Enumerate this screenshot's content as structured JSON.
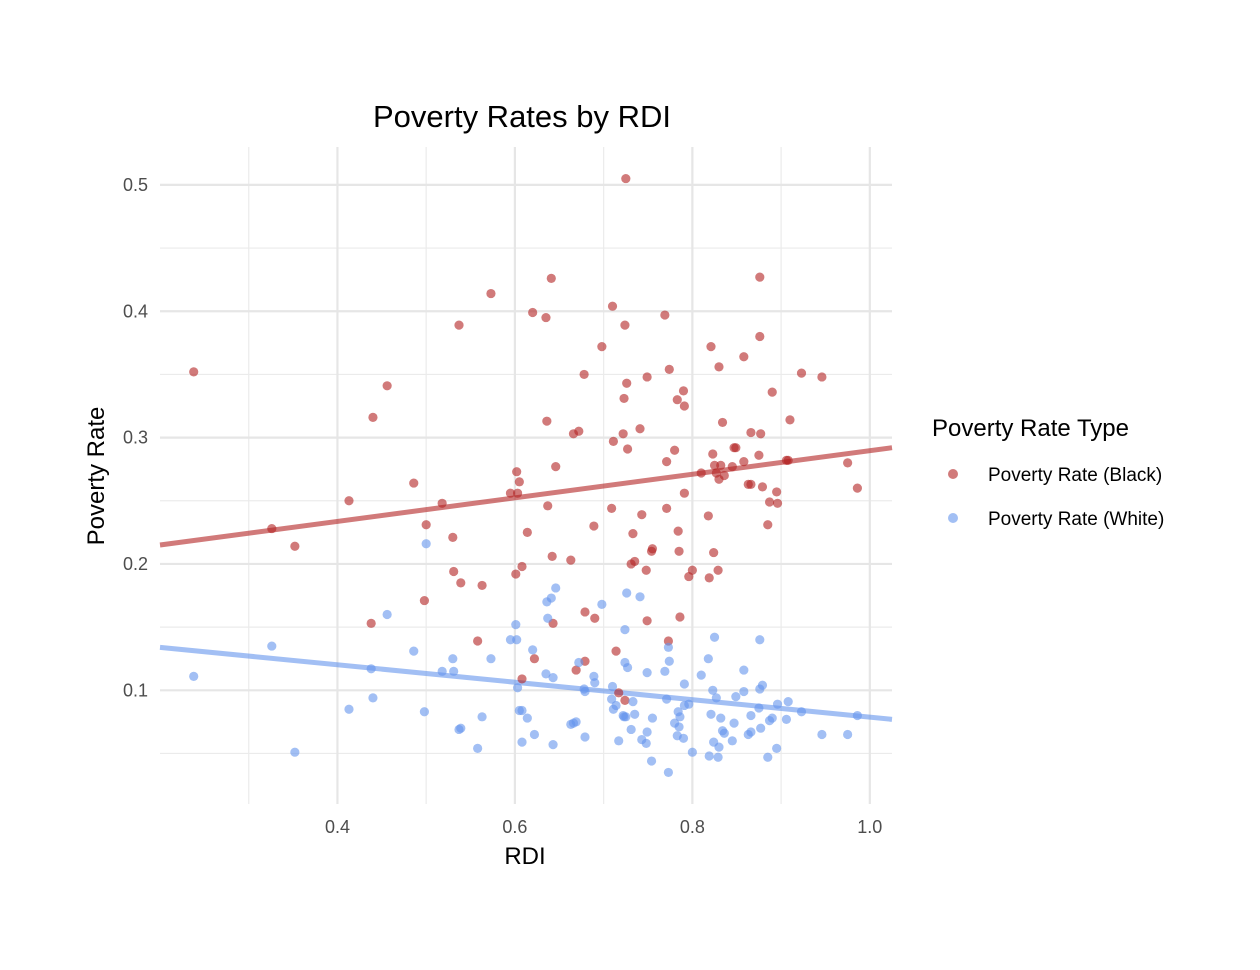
{
  "chart_data": {
    "type": "scatter",
    "title": "Poverty Rates by RDI",
    "xlabel": "RDI",
    "ylabel": "Poverty Rate",
    "xlim": [
      0.2,
      1.025
    ],
    "ylim": [
      0.01,
      0.53
    ],
    "x_ticks": [
      0.4,
      0.6,
      0.8,
      1.0
    ],
    "x_tick_labels": [
      "0.4",
      "0.6",
      "0.8",
      "1.0"
    ],
    "y_ticks": [
      0.1,
      0.2,
      0.3,
      0.4,
      0.5
    ],
    "y_tick_labels": [
      "0.1",
      "0.2",
      "0.3",
      "0.4",
      "0.5"
    ],
    "grid": true,
    "legend": {
      "title": "Poverty Rate Type",
      "position": "right"
    },
    "series": [
      {
        "name": "Poverty Rate (Black)",
        "color": "#b22222",
        "trend": {
          "x": [
            0.2,
            1.025
          ],
          "y": [
            0.215,
            0.292
          ]
        },
        "points": [
          [
            0.238,
            0.352
          ],
          [
            0.326,
            0.228
          ],
          [
            0.352,
            0.214
          ],
          [
            0.413,
            0.25
          ],
          [
            0.438,
            0.153
          ],
          [
            0.44,
            0.316
          ],
          [
            0.456,
            0.341
          ],
          [
            0.486,
            0.264
          ],
          [
            0.498,
            0.171
          ],
          [
            0.5,
            0.231
          ],
          [
            0.518,
            0.248
          ],
          [
            0.53,
            0.221
          ],
          [
            0.531,
            0.194
          ],
          [
            0.537,
            0.389
          ],
          [
            0.539,
            0.185
          ],
          [
            0.563,
            0.183
          ],
          [
            0.558,
            0.139
          ],
          [
            0.573,
            0.414
          ],
          [
            0.595,
            0.256
          ],
          [
            0.601,
            0.192
          ],
          [
            0.602,
            0.273
          ],
          [
            0.603,
            0.256
          ],
          [
            0.605,
            0.265
          ],
          [
            0.608,
            0.198
          ],
          [
            0.608,
            0.109
          ],
          [
            0.614,
            0.225
          ],
          [
            0.62,
            0.399
          ],
          [
            0.622,
            0.125
          ],
          [
            0.635,
            0.395
          ],
          [
            0.636,
            0.313
          ],
          [
            0.637,
            0.246
          ],
          [
            0.641,
            0.426
          ],
          [
            0.642,
            0.206
          ],
          [
            0.643,
            0.153
          ],
          [
            0.646,
            0.277
          ],
          [
            0.663,
            0.203
          ],
          [
            0.666,
            0.303
          ],
          [
            0.669,
            0.116
          ],
          [
            0.672,
            0.305
          ],
          [
            0.678,
            0.35
          ],
          [
            0.679,
            0.123
          ],
          [
            0.679,
            0.162
          ],
          [
            0.689,
            0.23
          ],
          [
            0.69,
            0.157
          ],
          [
            0.698,
            0.372
          ],
          [
            0.709,
            0.244
          ],
          [
            0.71,
            0.404
          ],
          [
            0.711,
            0.297
          ],
          [
            0.714,
            0.131
          ],
          [
            0.717,
            0.098
          ],
          [
            0.722,
            0.303
          ],
          [
            0.723,
            0.331
          ],
          [
            0.724,
            0.389
          ],
          [
            0.724,
            0.092
          ],
          [
            0.725,
            0.505
          ],
          [
            0.726,
            0.343
          ],
          [
            0.727,
            0.291
          ],
          [
            0.731,
            0.2
          ],
          [
            0.733,
            0.224
          ],
          [
            0.735,
            0.202
          ],
          [
            0.741,
            0.307
          ],
          [
            0.743,
            0.239
          ],
          [
            0.748,
            0.195
          ],
          [
            0.749,
            0.155
          ],
          [
            0.749,
            0.348
          ],
          [
            0.754,
            0.21
          ],
          [
            0.755,
            0.212
          ],
          [
            0.769,
            0.397
          ],
          [
            0.771,
            0.281
          ],
          [
            0.771,
            0.244
          ],
          [
            0.773,
            0.139
          ],
          [
            0.774,
            0.354
          ],
          [
            0.78,
            0.29
          ],
          [
            0.783,
            0.33
          ],
          [
            0.784,
            0.226
          ],
          [
            0.785,
            0.21
          ],
          [
            0.786,
            0.158
          ],
          [
            0.79,
            0.337
          ],
          [
            0.791,
            0.325
          ],
          [
            0.791,
            0.256
          ],
          [
            0.796,
            0.19
          ],
          [
            0.8,
            0.195
          ],
          [
            0.81,
            0.272
          ],
          [
            0.818,
            0.238
          ],
          [
            0.819,
            0.189
          ],
          [
            0.821,
            0.372
          ],
          [
            0.823,
            0.287
          ],
          [
            0.824,
            0.209
          ],
          [
            0.825,
            0.278
          ],
          [
            0.827,
            0.272
          ],
          [
            0.829,
            0.195
          ],
          [
            0.83,
            0.356
          ],
          [
            0.83,
            0.267
          ],
          [
            0.832,
            0.278
          ],
          [
            0.834,
            0.312
          ],
          [
            0.836,
            0.27
          ],
          [
            0.845,
            0.277
          ],
          [
            0.847,
            0.292
          ],
          [
            0.849,
            0.292
          ],
          [
            0.858,
            0.281
          ],
          [
            0.858,
            0.364
          ],
          [
            0.863,
            0.263
          ],
          [
            0.866,
            0.304
          ],
          [
            0.866,
            0.263
          ],
          [
            0.875,
            0.286
          ],
          [
            0.876,
            0.427
          ],
          [
            0.876,
            0.38
          ],
          [
            0.877,
            0.303
          ],
          [
            0.879,
            0.261
          ],
          [
            0.885,
            0.231
          ],
          [
            0.887,
            0.249
          ],
          [
            0.89,
            0.336
          ],
          [
            0.895,
            0.257
          ],
          [
            0.896,
            0.248
          ],
          [
            0.906,
            0.282
          ],
          [
            0.908,
            0.282
          ],
          [
            0.91,
            0.314
          ],
          [
            0.923,
            0.351
          ],
          [
            0.946,
            0.348
          ],
          [
            0.975,
            0.28
          ],
          [
            0.986,
            0.26
          ]
        ]
      },
      {
        "name": "Poverty Rate (White)",
        "color": "#6495ed",
        "trend": {
          "x": [
            0.2,
            1.025
          ],
          "y": [
            0.134,
            0.077
          ]
        },
        "points": [
          [
            0.238,
            0.111
          ],
          [
            0.326,
            0.135
          ],
          [
            0.352,
            0.051
          ],
          [
            0.413,
            0.085
          ],
          [
            0.438,
            0.117
          ],
          [
            0.44,
            0.094
          ],
          [
            0.456,
            0.16
          ],
          [
            0.486,
            0.131
          ],
          [
            0.498,
            0.083
          ],
          [
            0.5,
            0.216
          ],
          [
            0.518,
            0.115
          ],
          [
            0.53,
            0.125
          ],
          [
            0.531,
            0.115
          ],
          [
            0.537,
            0.069
          ],
          [
            0.539,
            0.07
          ],
          [
            0.558,
            0.054
          ],
          [
            0.563,
            0.079
          ],
          [
            0.573,
            0.125
          ],
          [
            0.595,
            0.14
          ],
          [
            0.601,
            0.152
          ],
          [
            0.602,
            0.14
          ],
          [
            0.603,
            0.102
          ],
          [
            0.605,
            0.084
          ],
          [
            0.608,
            0.084
          ],
          [
            0.608,
            0.059
          ],
          [
            0.614,
            0.078
          ],
          [
            0.62,
            0.132
          ],
          [
            0.622,
            0.065
          ],
          [
            0.635,
            0.113
          ],
          [
            0.636,
            0.17
          ],
          [
            0.637,
            0.157
          ],
          [
            0.641,
            0.173
          ],
          [
            0.643,
            0.11
          ],
          [
            0.643,
            0.057
          ],
          [
            0.646,
            0.181
          ],
          [
            0.663,
            0.073
          ],
          [
            0.666,
            0.074
          ],
          [
            0.669,
            0.075
          ],
          [
            0.672,
            0.122
          ],
          [
            0.678,
            0.101
          ],
          [
            0.679,
            0.099
          ],
          [
            0.679,
            0.063
          ],
          [
            0.689,
            0.111
          ],
          [
            0.69,
            0.106
          ],
          [
            0.698,
            0.168
          ],
          [
            0.709,
            0.093
          ],
          [
            0.71,
            0.103
          ],
          [
            0.711,
            0.085
          ],
          [
            0.714,
            0.088
          ],
          [
            0.717,
            0.06
          ],
          [
            0.722,
            0.08
          ],
          [
            0.723,
            0.079
          ],
          [
            0.724,
            0.122
          ],
          [
            0.724,
            0.148
          ],
          [
            0.725,
            0.079
          ],
          [
            0.726,
            0.177
          ],
          [
            0.727,
            0.118
          ],
          [
            0.731,
            0.069
          ],
          [
            0.733,
            0.091
          ],
          [
            0.735,
            0.081
          ],
          [
            0.741,
            0.174
          ],
          [
            0.743,
            0.061
          ],
          [
            0.748,
            0.058
          ],
          [
            0.749,
            0.067
          ],
          [
            0.749,
            0.114
          ],
          [
            0.754,
            0.044
          ],
          [
            0.755,
            0.078
          ],
          [
            0.769,
            0.115
          ],
          [
            0.771,
            0.093
          ],
          [
            0.773,
            0.134
          ],
          [
            0.773,
            0.035
          ],
          [
            0.774,
            0.123
          ],
          [
            0.78,
            0.074
          ],
          [
            0.783,
            0.064
          ],
          [
            0.784,
            0.083
          ],
          [
            0.785,
            0.071
          ],
          [
            0.786,
            0.079
          ],
          [
            0.79,
            0.062
          ],
          [
            0.791,
            0.105
          ],
          [
            0.791,
            0.088
          ],
          [
            0.796,
            0.089
          ],
          [
            0.8,
            0.051
          ],
          [
            0.81,
            0.112
          ],
          [
            0.818,
            0.125
          ],
          [
            0.819,
            0.048
          ],
          [
            0.821,
            0.081
          ],
          [
            0.823,
            0.1
          ],
          [
            0.824,
            0.059
          ],
          [
            0.825,
            0.142
          ],
          [
            0.827,
            0.094
          ],
          [
            0.829,
            0.047
          ],
          [
            0.83,
            0.055
          ],
          [
            0.832,
            0.078
          ],
          [
            0.834,
            0.068
          ],
          [
            0.836,
            0.066
          ],
          [
            0.845,
            0.06
          ],
          [
            0.847,
            0.074
          ],
          [
            0.849,
            0.095
          ],
          [
            0.858,
            0.116
          ],
          [
            0.858,
            0.099
          ],
          [
            0.863,
            0.065
          ],
          [
            0.866,
            0.067
          ],
          [
            0.866,
            0.08
          ],
          [
            0.875,
            0.086
          ],
          [
            0.876,
            0.14
          ],
          [
            0.876,
            0.101
          ],
          [
            0.877,
            0.07
          ],
          [
            0.879,
            0.104
          ],
          [
            0.885,
            0.047
          ],
          [
            0.887,
            0.076
          ],
          [
            0.89,
            0.078
          ],
          [
            0.895,
            0.054
          ],
          [
            0.896,
            0.089
          ],
          [
            0.906,
            0.077
          ],
          [
            0.908,
            0.091
          ],
          [
            0.923,
            0.083
          ],
          [
            0.946,
            0.065
          ],
          [
            0.975,
            0.065
          ],
          [
            0.986,
            0.08
          ]
        ]
      }
    ]
  }
}
